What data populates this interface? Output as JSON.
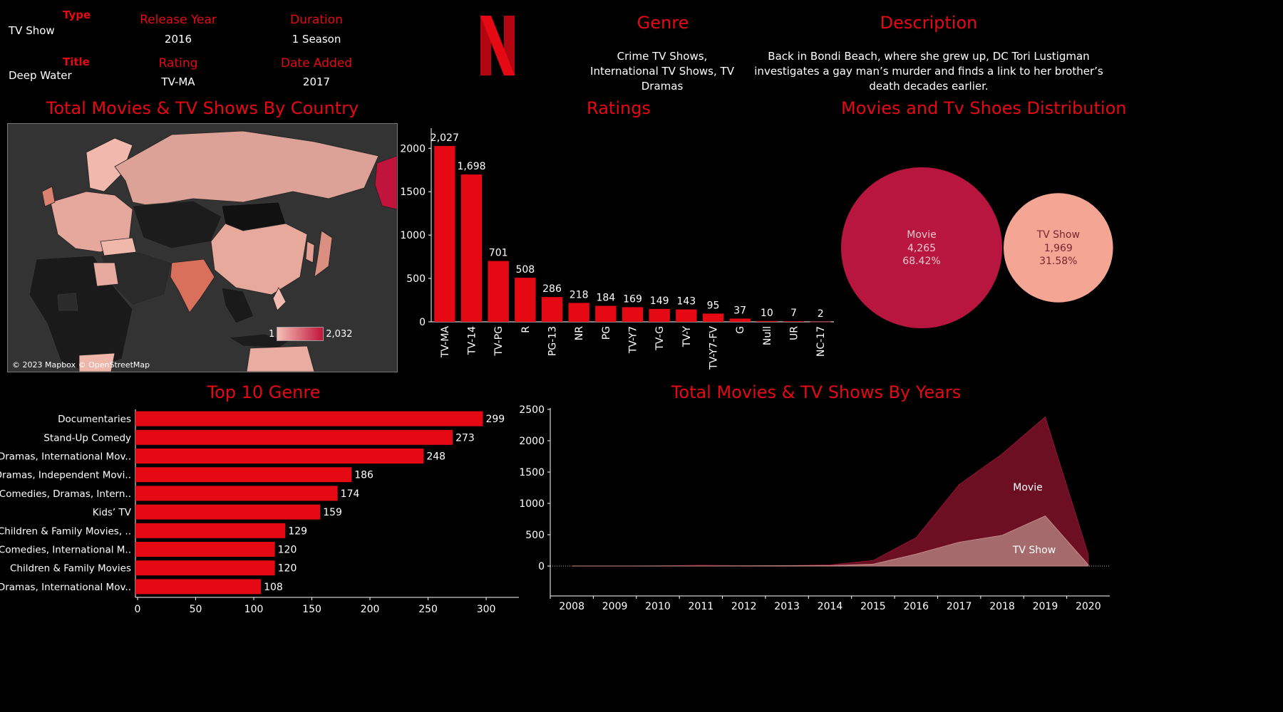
{
  "header": {
    "type_label": "Type",
    "type_value": "TV Show",
    "title_label": "Title",
    "title_value": "Deep Water",
    "release_label": "Release Year",
    "release_value": "2016",
    "rating_label": "Rating",
    "rating_value": "TV-MA",
    "duration_label": "Duration",
    "duration_value": "1 Season",
    "date_added_label": "Date Added",
    "date_added_value": "2017",
    "genre_label": "Genre",
    "genre_value": "Crime TV Shows, International TV Shows, TV Dramas",
    "description_label": "Description",
    "description_value": "Back in Bondi Beach, where she grew up, DC Tori Lustigman investigates a gay man’s murder and finds a link to her brother’s death decades earlier."
  },
  "map": {
    "title": "Total Movies & TV Shows By Country",
    "legend_min": "1",
    "legend_max": "2,032",
    "attribution": "© 2023 Mapbox © OpenStreetMap",
    "colors": {
      "low": "#f4c0b4",
      "high": "#c0143c",
      "empty": "#1c1c1c"
    }
  },
  "colors": {
    "accent": "#e50914",
    "movie": "#b8153f",
    "tvshow": "#f4a594",
    "movie_area": "#6d0f22",
    "tv_area": "#a56a6c"
  },
  "chart_data": [
    {
      "type": "bar",
      "title": "Ratings",
      "categories": [
        "TV-MA",
        "TV-14",
        "TV-PG",
        "R",
        "PG-13",
        "NR",
        "PG",
        "TV-Y7",
        "TV-G",
        "TV-Y",
        "TV-Y7-FV",
        "G",
        "Null",
        "UR",
        "NC-17"
      ],
      "values": [
        2027,
        1698,
        701,
        508,
        286,
        218,
        184,
        169,
        149,
        143,
        95,
        37,
        10,
        7,
        2
      ],
      "value_labels": [
        "2,027",
        "1,698",
        "701",
        "508",
        "286",
        "218",
        "184",
        "169",
        "149",
        "143",
        "95",
        "37",
        "10",
        "7",
        "2"
      ],
      "yticks": [
        "0",
        "500",
        "1000",
        "1500",
        "2000"
      ],
      "ylim": [
        0,
        2150
      ]
    },
    {
      "type": "bubble",
      "title": "Movies and Tv Shoes Distribution",
      "series": [
        {
          "name": "Movie",
          "value": 4265,
          "value_label": "4,265",
          "percent": "68.42%"
        },
        {
          "name": "TV Show",
          "value": 1969,
          "value_label": "1,969",
          "percent": "31.58%"
        }
      ]
    },
    {
      "type": "bar",
      "orientation": "horizontal",
      "title": "Top 10 Genre",
      "categories": [
        "Documentaries",
        "Stand-Up Comedy",
        "Dramas, International Mov..",
        "Dramas, Independent Movi..",
        "Comedies, Dramas, Intern..",
        "Kids’ TV",
        "Children & Family Movies, ..",
        "Comedies, International M..",
        "Children & Family Movies",
        "Dramas, International Mov.."
      ],
      "values": [
        299,
        273,
        248,
        186,
        174,
        159,
        129,
        120,
        120,
        108
      ],
      "xticks": [
        "0",
        "50",
        "100",
        "150",
        "200",
        "250",
        "300"
      ],
      "xlim": [
        0,
        330
      ]
    },
    {
      "type": "area",
      "title": "Total Movies & TV Shows By Years",
      "x": [
        "2008",
        "2009",
        "2010",
        "2011",
        "2012",
        "2013",
        "2014",
        "2015",
        "2016",
        "2017",
        "2018",
        "2019",
        "2020"
      ],
      "series": [
        {
          "name": "Movie",
          "values": [
            1,
            2,
            1,
            13,
            3,
            6,
            19,
            88,
            453,
            1300,
            1790,
            2380,
            184
          ]
        },
        {
          "name": "TV Show",
          "values": [
            0,
            0,
            1,
            0,
            3,
            6,
            6,
            30,
            190,
            380,
            490,
            800,
            20
          ]
        }
      ],
      "yticks": [
        "0",
        "500",
        "1000",
        "1500",
        "2000",
        "2500"
      ],
      "ylim": [
        0,
        2500
      ]
    }
  ]
}
